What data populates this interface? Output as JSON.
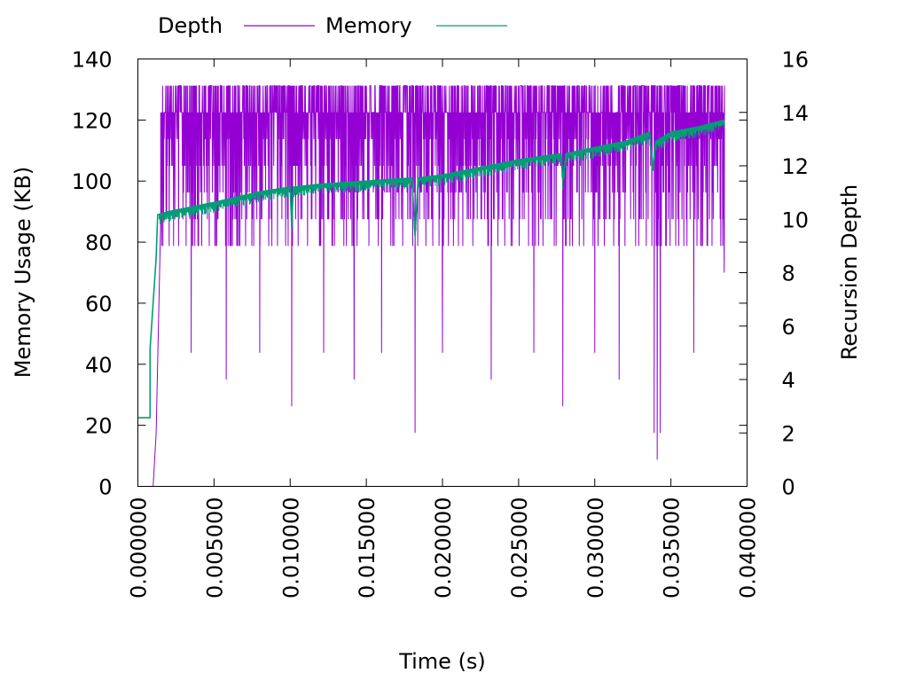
{
  "chart_data": {
    "type": "line",
    "title": "",
    "xlabel": "Time (s)",
    "ylabel": "Memory Usage (KB)",
    "y2label": "Recursion Depth",
    "xlim": [
      0.0,
      0.04
    ],
    "ylim": [
      0,
      140
    ],
    "y2lim": [
      0,
      16
    ],
    "x_ticks": [
      "0.000000",
      "0.005000",
      "0.010000",
      "0.015000",
      "0.020000",
      "0.025000",
      "0.030000",
      "0.035000",
      "0.040000"
    ],
    "y_ticks": [
      "0",
      "20",
      "40",
      "60",
      "80",
      "100",
      "120",
      "140"
    ],
    "y2_ticks": [
      "0",
      "2",
      "4",
      "6",
      "8",
      "10",
      "12",
      "14",
      "16"
    ],
    "grid": false,
    "legend": {
      "placement": "top-left",
      "entries": [
        {
          "label": "Depth",
          "color": "#9400D3"
        },
        {
          "label": "Memory",
          "color": "#009E73"
        }
      ]
    },
    "series": [
      {
        "name": "Depth",
        "axis": "right",
        "color": "#9400D3",
        "typical_range": [
          9,
          15
        ],
        "x": [
          0.001,
          0.0012,
          0.0015,
          0.0035,
          0.0058,
          0.008,
          0.0101,
          0.0122,
          0.0142,
          0.016,
          0.0182,
          0.02,
          0.0232,
          0.026,
          0.0279,
          0.03,
          0.0316,
          0.0339,
          0.0341,
          0.0343,
          0.0365,
          0.0385
        ],
        "values": [
          0,
          2,
          10,
          5,
          4,
          5,
          3,
          5,
          4,
          5,
          2,
          5,
          4,
          5,
          3,
          5,
          4,
          2,
          1,
          2,
          5,
          8
        ]
      },
      {
        "name": "Memory",
        "axis": "left",
        "color": "#009E73",
        "x": [
          0.0,
          0.0008,
          0.0008,
          0.001,
          0.0012,
          0.0013,
          0.002,
          0.005,
          0.008,
          0.01,
          0.0101,
          0.0102,
          0.012,
          0.015,
          0.018,
          0.0182,
          0.0184,
          0.02,
          0.025,
          0.0278,
          0.0279,
          0.0281,
          0.03,
          0.032,
          0.0336,
          0.0338,
          0.034,
          0.035,
          0.037,
          0.0385
        ],
        "values": [
          22.5,
          22.5,
          45,
          60,
          75,
          89,
          90,
          93,
          96.5,
          98,
          85,
          98,
          99,
          100,
          101,
          82,
          101,
          102,
          107,
          109,
          100,
          109,
          111,
          113,
          116,
          104,
          113,
          116,
          118,
          120
        ]
      }
    ]
  }
}
